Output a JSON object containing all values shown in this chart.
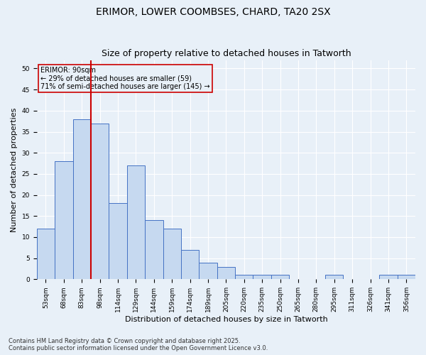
{
  "title1": "ERIMOR, LOWER COOMBSES, CHARD, TA20 2SX",
  "title2": "Size of property relative to detached houses in Tatworth",
  "xlabel": "Distribution of detached houses by size in Tatworth",
  "ylabel": "Number of detached properties",
  "categories": [
    "53sqm",
    "68sqm",
    "83sqm",
    "98sqm",
    "114sqm",
    "129sqm",
    "144sqm",
    "159sqm",
    "174sqm",
    "189sqm",
    "205sqm",
    "220sqm",
    "235sqm",
    "250sqm",
    "265sqm",
    "280sqm",
    "295sqm",
    "311sqm",
    "326sqm",
    "341sqm",
    "356sqm"
  ],
  "values": [
    12,
    28,
    38,
    37,
    18,
    27,
    14,
    12,
    7,
    4,
    3,
    1,
    1,
    1,
    0,
    0,
    1,
    0,
    0,
    1,
    1
  ],
  "bar_color": "#c6d9f0",
  "bar_edge_color": "#4472c4",
  "vline_x": 2.5,
  "vline_color": "#cc0000",
  "annotation_line1": "ERIMOR: 90sqm",
  "annotation_line2": "← 29% of detached houses are smaller (59)",
  "annotation_line3": "71% of semi-detached houses are larger (145) →",
  "annotation_box_color": "#cc0000",
  "ylim": [
    0,
    52
  ],
  "yticks": [
    0,
    5,
    10,
    15,
    20,
    25,
    30,
    35,
    40,
    45,
    50
  ],
  "footer1": "Contains HM Land Registry data © Crown copyright and database right 2025.",
  "footer2": "Contains public sector information licensed under the Open Government Licence v3.0.",
  "background_color": "#e8f0f8",
  "grid_color": "#ffffff",
  "title_fontsize": 10,
  "subtitle_fontsize": 9,
  "tick_fontsize": 6.5,
  "ylabel_fontsize": 8,
  "xlabel_fontsize": 8,
  "footer_fontsize": 6,
  "annotation_fontsize": 7
}
